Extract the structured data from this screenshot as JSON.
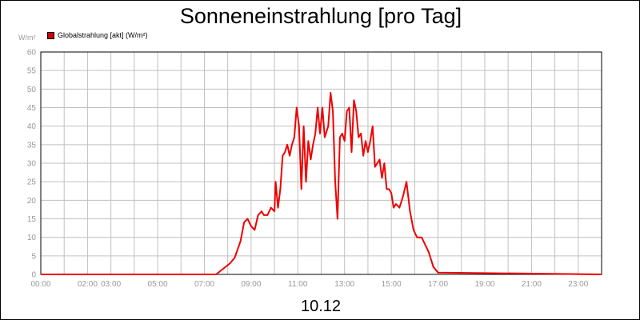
{
  "colors": {
    "series": "#ee0000",
    "grid": "#c0c0c0",
    "axis_text": "#999999",
    "legend_swatch": "#cc0000"
  },
  "chart_data": {
    "type": "line",
    "title": "Sonneneinstrahlung [pro Tag]",
    "caption": "10.12",
    "ylabel": "W/m²",
    "ylim": [
      0,
      60
    ],
    "yticks": [
      0,
      5,
      10,
      15,
      20,
      25,
      30,
      35,
      40,
      45,
      50,
      55,
      60
    ],
    "xlim": [
      0,
      24
    ],
    "xticks": [
      "00:00",
      "02:00",
      "03:00",
      "05:00",
      "07:00",
      "09:00",
      "11:00",
      "13:00",
      "15:00",
      "17:00",
      "19:00",
      "21:00",
      "23:00"
    ],
    "grid": true,
    "legend": "top-left",
    "series": [
      {
        "name": "Globalstrahlung [akt] (W/m²)",
        "color": "#ee0000",
        "x": [
          0,
          7.5,
          7.8,
          8.1,
          8.3,
          8.55,
          8.7,
          8.85,
          9.0,
          9.15,
          9.3,
          9.45,
          9.55,
          9.7,
          9.85,
          10.0,
          10.05,
          10.15,
          10.25,
          10.35,
          10.45,
          10.55,
          10.65,
          10.75,
          10.85,
          10.95,
          11.05,
          11.15,
          11.25,
          11.35,
          11.45,
          11.55,
          11.65,
          11.75,
          11.85,
          11.95,
          12.05,
          12.15,
          12.3,
          12.4,
          12.5,
          12.6,
          12.7,
          12.8,
          12.9,
          13.0,
          13.1,
          13.2,
          13.3,
          13.4,
          13.5,
          13.6,
          13.7,
          13.8,
          13.9,
          14.0,
          14.1,
          14.2,
          14.3,
          14.4,
          14.5,
          14.6,
          14.7,
          14.8,
          14.9,
          15.0,
          15.1,
          15.2,
          15.35,
          15.5,
          15.65,
          15.8,
          15.95,
          16.1,
          16.3,
          16.6,
          16.8,
          17.0,
          24
        ],
        "values": [
          0,
          0,
          1.5,
          3,
          4.5,
          9,
          14,
          15,
          13,
          12,
          16,
          17,
          16,
          16,
          18,
          17,
          25,
          18,
          23,
          32,
          33,
          35,
          32,
          35,
          37,
          45,
          40,
          23,
          40,
          25,
          36,
          31,
          35,
          38,
          45,
          38,
          45,
          37,
          40,
          49,
          44,
          25,
          15,
          37,
          38,
          36,
          44,
          45,
          33,
          47,
          44,
          37,
          38,
          32,
          36,
          33,
          36,
          40,
          29,
          30,
          31,
          26,
          30,
          23,
          23,
          22,
          18,
          19,
          18,
          21,
          25,
          17,
          12,
          10,
          10,
          6,
          2,
          0.5,
          0
        ]
      }
    ]
  }
}
